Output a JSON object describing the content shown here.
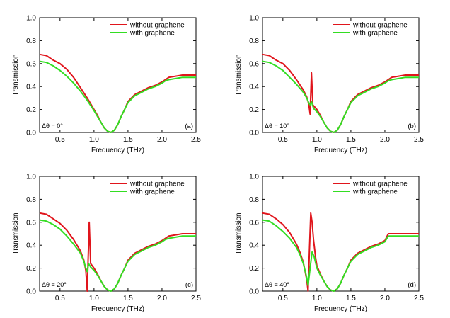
{
  "figure": {
    "panel_count": 4
  },
  "chart_data": [
    {
      "type": "line",
      "panel_label": "(a)",
      "annotation": "Δθ = 0°",
      "xlabel": "Frequency (THz)",
      "ylabel": "Transmission",
      "xlim": [
        0.2,
        2.5
      ],
      "ylim": [
        0.0,
        1.0
      ],
      "x_ticks": [
        "0.5",
        "1.0",
        "1.5",
        "2.0",
        "2.5"
      ],
      "x_tick_values": [
        0.5,
        1.0,
        1.5,
        2.0,
        2.5
      ],
      "y_ticks": [
        "0.0",
        "0.2",
        "0.4",
        "0.6",
        "0.8",
        "1.0"
      ],
      "y_tick_values": [
        0.0,
        0.2,
        0.4,
        0.6,
        0.8,
        1.0
      ],
      "legend_position": "top-right",
      "series": [
        {
          "name": "without graphene",
          "color": "#e0151c",
          "x": [
            0.2,
            0.3,
            0.4,
            0.5,
            0.6,
            0.7,
            0.8,
            0.9,
            1.0,
            1.05,
            1.1,
            1.15,
            1.2,
            1.25,
            1.3,
            1.35,
            1.4,
            1.45,
            1.5,
            1.6,
            1.7,
            1.8,
            1.9,
            2.0,
            2.05,
            2.1,
            2.2,
            2.3,
            2.4,
            2.5
          ],
          "y": [
            0.68,
            0.67,
            0.63,
            0.6,
            0.55,
            0.48,
            0.39,
            0.3,
            0.2,
            0.15,
            0.09,
            0.04,
            0.01,
            0.0,
            0.02,
            0.07,
            0.14,
            0.2,
            0.27,
            0.33,
            0.36,
            0.39,
            0.41,
            0.44,
            0.46,
            0.48,
            0.49,
            0.5,
            0.5,
            0.5
          ]
        },
        {
          "name": "with graphene",
          "color": "#33dd22",
          "x": [
            0.2,
            0.3,
            0.4,
            0.5,
            0.6,
            0.7,
            0.8,
            0.9,
            1.0,
            1.05,
            1.1,
            1.15,
            1.2,
            1.25,
            1.3,
            1.35,
            1.4,
            1.45,
            1.5,
            1.6,
            1.7,
            1.8,
            1.9,
            2.0,
            2.05,
            2.1,
            2.2,
            2.3,
            2.4,
            2.5
          ],
          "y": [
            0.62,
            0.61,
            0.58,
            0.54,
            0.49,
            0.43,
            0.36,
            0.28,
            0.19,
            0.14,
            0.09,
            0.04,
            0.01,
            0.0,
            0.02,
            0.07,
            0.14,
            0.2,
            0.26,
            0.32,
            0.35,
            0.38,
            0.4,
            0.43,
            0.45,
            0.46,
            0.47,
            0.48,
            0.48,
            0.48
          ]
        }
      ]
    },
    {
      "type": "line",
      "panel_label": "(b)",
      "annotation": "Δθ = 10°",
      "xlabel": "Frequency (THz)",
      "ylabel": "Transmission",
      "xlim": [
        0.2,
        2.5
      ],
      "ylim": [
        0.0,
        1.0
      ],
      "x_ticks": [
        "0.5",
        "1.0",
        "1.5",
        "2.0",
        "2.5"
      ],
      "x_tick_values": [
        0.5,
        1.0,
        1.5,
        2.0,
        2.5
      ],
      "y_ticks": [
        "0.0",
        "0.2",
        "0.4",
        "0.6",
        "0.8",
        "1.0"
      ],
      "y_tick_values": [
        0.0,
        0.2,
        0.4,
        0.6,
        0.8,
        1.0
      ],
      "legend_position": "top-right",
      "series": [
        {
          "name": "without graphene",
          "color": "#e0151c",
          "x": [
            0.2,
            0.3,
            0.4,
            0.5,
            0.6,
            0.7,
            0.8,
            0.85,
            0.88,
            0.9,
            0.92,
            0.94,
            1.0,
            1.05,
            1.1,
            1.15,
            1.2,
            1.25,
            1.3,
            1.35,
            1.4,
            1.45,
            1.5,
            1.6,
            1.7,
            1.8,
            1.9,
            2.0,
            2.05,
            2.1,
            2.2,
            2.3,
            2.4,
            2.5
          ],
          "y": [
            0.68,
            0.67,
            0.63,
            0.6,
            0.54,
            0.46,
            0.37,
            0.31,
            0.25,
            0.16,
            0.52,
            0.24,
            0.2,
            0.15,
            0.09,
            0.04,
            0.01,
            0.0,
            0.02,
            0.07,
            0.14,
            0.2,
            0.27,
            0.33,
            0.36,
            0.39,
            0.41,
            0.44,
            0.46,
            0.48,
            0.49,
            0.5,
            0.5,
            0.5
          ]
        },
        {
          "name": "with graphene",
          "color": "#33dd22",
          "x": [
            0.2,
            0.3,
            0.4,
            0.5,
            0.6,
            0.7,
            0.8,
            0.85,
            0.88,
            0.9,
            0.92,
            0.95,
            1.0,
            1.05,
            1.1,
            1.15,
            1.2,
            1.25,
            1.3,
            1.35,
            1.4,
            1.45,
            1.5,
            1.6,
            1.7,
            1.8,
            1.9,
            2.0,
            2.05,
            2.1,
            2.2,
            2.3,
            2.4,
            2.5
          ],
          "y": [
            0.62,
            0.61,
            0.58,
            0.54,
            0.48,
            0.42,
            0.35,
            0.3,
            0.26,
            0.24,
            0.27,
            0.21,
            0.18,
            0.14,
            0.09,
            0.04,
            0.01,
            0.0,
            0.02,
            0.07,
            0.14,
            0.2,
            0.26,
            0.32,
            0.35,
            0.38,
            0.4,
            0.43,
            0.45,
            0.46,
            0.47,
            0.48,
            0.48,
            0.48
          ]
        }
      ]
    },
    {
      "type": "line",
      "panel_label": "(c)",
      "annotation": "Δθ = 20°",
      "xlabel": "Frequency (THz)",
      "ylabel": "Transmission",
      "xlim": [
        0.2,
        2.5
      ],
      "ylim": [
        0.0,
        1.0
      ],
      "x_ticks": [
        "0.5",
        "1.0",
        "1.5",
        "2.0",
        "2.5"
      ],
      "x_tick_values": [
        0.5,
        1.0,
        1.5,
        2.0,
        2.5
      ],
      "y_ticks": [
        "0.0",
        "0.2",
        "0.4",
        "0.6",
        "0.8",
        "1.0"
      ],
      "y_tick_values": [
        0.0,
        0.2,
        0.4,
        0.6,
        0.8,
        1.0
      ],
      "legend_position": "top-right",
      "series": [
        {
          "name": "without graphene",
          "color": "#e0151c",
          "x": [
            0.2,
            0.3,
            0.4,
            0.5,
            0.6,
            0.7,
            0.8,
            0.85,
            0.88,
            0.9,
            0.91,
            0.93,
            0.95,
            1.0,
            1.05,
            1.1,
            1.15,
            1.2,
            1.25,
            1.3,
            1.35,
            1.4,
            1.45,
            1.5,
            1.6,
            1.7,
            1.8,
            1.9,
            2.0,
            2.05,
            2.1,
            2.2,
            2.3,
            2.4,
            2.5
          ],
          "y": [
            0.68,
            0.67,
            0.63,
            0.59,
            0.53,
            0.45,
            0.35,
            0.27,
            0.18,
            0.0,
            0.2,
            0.6,
            0.24,
            0.2,
            0.15,
            0.09,
            0.04,
            0.01,
            0.0,
            0.02,
            0.07,
            0.14,
            0.2,
            0.27,
            0.33,
            0.36,
            0.39,
            0.41,
            0.44,
            0.46,
            0.48,
            0.49,
            0.5,
            0.5,
            0.5
          ]
        },
        {
          "name": "with graphene",
          "color": "#33dd22",
          "x": [
            0.2,
            0.3,
            0.4,
            0.5,
            0.6,
            0.7,
            0.8,
            0.85,
            0.88,
            0.9,
            0.92,
            0.95,
            1.0,
            1.05,
            1.1,
            1.15,
            1.2,
            1.25,
            1.3,
            1.35,
            1.4,
            1.45,
            1.5,
            1.6,
            1.7,
            1.8,
            1.9,
            2.0,
            2.05,
            2.1,
            2.2,
            2.3,
            2.4,
            2.5
          ],
          "y": [
            0.62,
            0.61,
            0.58,
            0.54,
            0.48,
            0.41,
            0.33,
            0.26,
            0.2,
            0.17,
            0.24,
            0.21,
            0.18,
            0.14,
            0.09,
            0.04,
            0.01,
            0.0,
            0.02,
            0.07,
            0.14,
            0.2,
            0.26,
            0.32,
            0.35,
            0.38,
            0.4,
            0.43,
            0.45,
            0.46,
            0.47,
            0.48,
            0.48,
            0.48
          ]
        }
      ]
    },
    {
      "type": "line",
      "panel_label": "(d)",
      "annotation": "Δθ = 40°",
      "xlabel": "Frequency (THz)",
      "ylabel": "Transmission",
      "xlim": [
        0.2,
        2.5
      ],
      "ylim": [
        0.0,
        1.0
      ],
      "x_ticks": [
        "0.5",
        "1.0",
        "1.5",
        "2.0",
        "2.5"
      ],
      "x_tick_values": [
        0.5,
        1.0,
        1.5,
        2.0,
        2.5
      ],
      "y_ticks": [
        "0.0",
        "0.2",
        "0.4",
        "0.6",
        "0.8",
        "1.0"
      ],
      "y_tick_values": [
        0.0,
        0.2,
        0.4,
        0.6,
        0.8,
        1.0
      ],
      "legend_position": "top-right",
      "series": [
        {
          "name": "without graphene",
          "color": "#e0151c",
          "x": [
            0.2,
            0.3,
            0.4,
            0.5,
            0.6,
            0.7,
            0.75,
            0.8,
            0.85,
            0.87,
            0.89,
            0.91,
            0.93,
            0.95,
            0.98,
            1.0,
            1.05,
            1.1,
            1.15,
            1.2,
            1.25,
            1.3,
            1.35,
            1.4,
            1.45,
            1.5,
            1.6,
            1.7,
            1.8,
            1.9,
            2.0,
            2.05,
            2.1,
            2.2,
            2.3,
            2.4,
            2.5
          ],
          "y": [
            0.68,
            0.67,
            0.63,
            0.58,
            0.51,
            0.41,
            0.34,
            0.25,
            0.1,
            0.0,
            0.35,
            0.68,
            0.6,
            0.45,
            0.3,
            0.22,
            0.15,
            0.09,
            0.04,
            0.01,
            0.0,
            0.02,
            0.07,
            0.14,
            0.2,
            0.27,
            0.33,
            0.36,
            0.39,
            0.41,
            0.44,
            0.5,
            0.5,
            0.5,
            0.5,
            0.5,
            0.5
          ]
        },
        {
          "name": "with graphene",
          "color": "#33dd22",
          "x": [
            0.2,
            0.3,
            0.4,
            0.5,
            0.6,
            0.7,
            0.75,
            0.8,
            0.85,
            0.87,
            0.9,
            0.93,
            0.96,
            1.0,
            1.05,
            1.1,
            1.15,
            1.2,
            1.25,
            1.3,
            1.35,
            1.4,
            1.45,
            1.5,
            1.6,
            1.7,
            1.8,
            1.9,
            2.0,
            2.05,
            2.1,
            2.2,
            2.3,
            2.4,
            2.5
          ],
          "y": [
            0.62,
            0.61,
            0.57,
            0.52,
            0.46,
            0.38,
            0.32,
            0.24,
            0.12,
            0.05,
            0.2,
            0.34,
            0.3,
            0.2,
            0.14,
            0.09,
            0.04,
            0.01,
            0.0,
            0.02,
            0.07,
            0.14,
            0.2,
            0.26,
            0.32,
            0.35,
            0.38,
            0.4,
            0.43,
            0.48,
            0.48,
            0.48,
            0.48,
            0.48,
            0.48
          ]
        }
      ]
    }
  ]
}
